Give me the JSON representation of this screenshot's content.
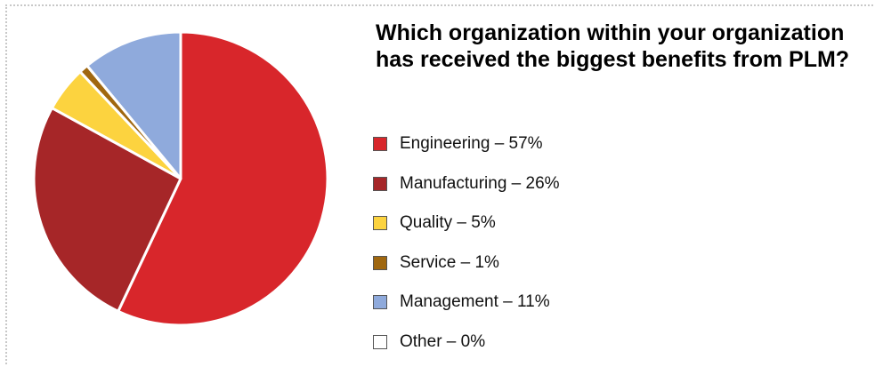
{
  "chart_data": {
    "type": "pie",
    "title": "Which organization within your organization has received the biggest benefits from PLM?",
    "start": "top, clockwise",
    "slices": [
      {
        "label": "Engineering",
        "value": 57,
        "legend": "Engineering – 57%",
        "color": "#d8262b"
      },
      {
        "label": "Manufacturing",
        "value": 26,
        "legend": "Manufacturing – 26%",
        "color": "#a62628"
      },
      {
        "label": "Quality",
        "value": 5,
        "legend": "Quality – 5%",
        "color": "#fcd33f"
      },
      {
        "label": "Service",
        "value": 1,
        "legend": "Service – 1%",
        "color": "#a0670f"
      },
      {
        "label": "Management",
        "value": 11,
        "legend": "Management – 11%",
        "color": "#8faadc"
      },
      {
        "label": "Other",
        "value": 0,
        "legend": "Other – 0%",
        "color": "#ffffff"
      }
    ]
  }
}
